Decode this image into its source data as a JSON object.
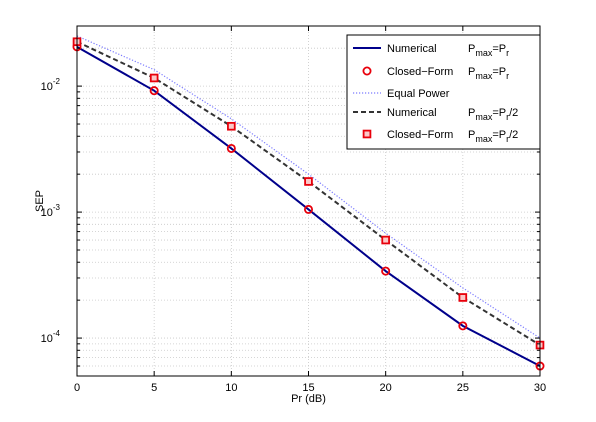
{
  "chart_data": {
    "type": "line",
    "xlabel": "Pr (dB)",
    "ylabel": "SEP",
    "xlim": [
      0,
      30
    ],
    "ylim": [
      5e-05,
      0.03
    ],
    "yscale": "log",
    "grid": true,
    "legend_position": "top-right",
    "x_ticks": [
      "0",
      "5",
      "10",
      "15",
      "20",
      "25",
      "30"
    ],
    "y_ticks": [
      {
        "value": 0.0001,
        "base": "10",
        "exp": "-4"
      },
      {
        "value": 0.001,
        "base": "10",
        "exp": "-3"
      },
      {
        "value": 0.01,
        "base": "10",
        "exp": "-2"
      }
    ],
    "legend_entries": [
      {
        "name": "Numerical",
        "sub_base": "P",
        "sub_max": "max",
        "sub_eq": "=P",
        "sub_r": "r",
        "sub_tail": ""
      },
      {
        "name": "Closed−Form",
        "sub_base": "P",
        "sub_max": "max",
        "sub_eq": "=P",
        "sub_r": "r",
        "sub_tail": ""
      },
      {
        "name": "Equal Power",
        "sub_base": "",
        "sub_max": "",
        "sub_eq": "",
        "sub_r": "",
        "sub_tail": ""
      },
      {
        "name": "Numerical",
        "sub_base": "P",
        "sub_max": "max",
        "sub_eq": "=P",
        "sub_r": "r",
        "sub_tail": "/2"
      },
      {
        "name": "Closed−Form",
        "sub_base": "P",
        "sub_max": "max",
        "sub_eq": "=P",
        "sub_r": "r",
        "sub_tail": "/2"
      }
    ],
    "series": [
      {
        "style": "solid",
        "color": "#00008b",
        "x": [
          0,
          5,
          10,
          15,
          20,
          25,
          30
        ],
        "values": [
          0.0205,
          0.0092,
          0.0032,
          0.00105,
          0.00034,
          0.000125,
          6e-05
        ]
      },
      {
        "style": "circle",
        "color": "#e8000b",
        "x": [
          0,
          5,
          10,
          15,
          20,
          25,
          30
        ],
        "values": [
          0.0205,
          0.0092,
          0.0032,
          0.00105,
          0.00034,
          0.000125,
          6e-05
        ]
      },
      {
        "style": "dotted",
        "color": "#7b7bff",
        "x": [
          0,
          5,
          10,
          15,
          20,
          25,
          30
        ],
        "values": [
          0.025,
          0.0135,
          0.0055,
          0.002,
          0.00068,
          0.00025,
          0.0001
        ]
      },
      {
        "style": "dashed",
        "color": "#333333",
        "x": [
          0,
          5,
          10,
          15,
          20,
          25,
          30
        ],
        "values": [
          0.0225,
          0.0116,
          0.0048,
          0.00175,
          0.0006,
          0.00021,
          8.8e-05
        ]
      },
      {
        "style": "square",
        "color": "#e8000b",
        "x": [
          0,
          5,
          10,
          15,
          20,
          25,
          30
        ],
        "values": [
          0.0225,
          0.0116,
          0.0048,
          0.00175,
          0.0006,
          0.00021,
          8.8e-05
        ]
      }
    ]
  }
}
